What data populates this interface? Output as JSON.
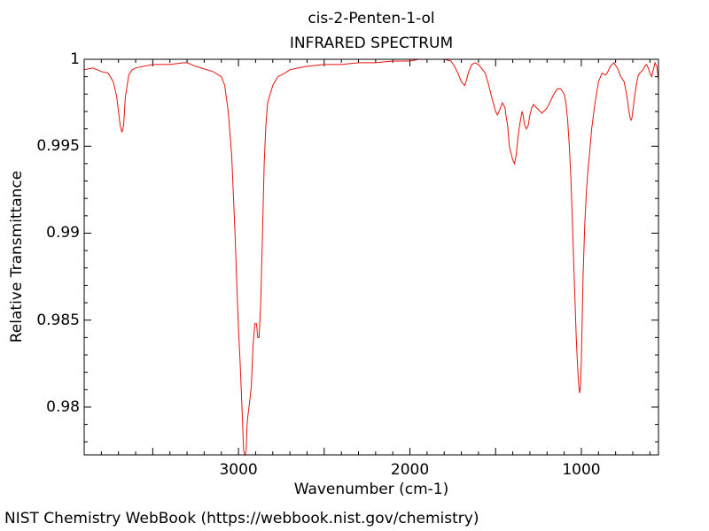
{
  "chart_data": {
    "type": "line",
    "title": "cis-2-Penten-1-ol",
    "subtitle": "INFRARED SPECTRUM",
    "xlabel": "Wavenumber (cm-1)",
    "ylabel": "Relative Transmittance",
    "xlim": [
      3900,
      550
    ],
    "ylim": [
      0.97725,
      1.0
    ],
    "x_ticks": [
      3000,
      2000,
      1000
    ],
    "x_tick_labels": [
      "3000",
      "2000",
      "1000"
    ],
    "y_ticks": [
      0.98,
      0.985,
      0.99,
      0.995,
      1.0
    ],
    "y_tick_labels": [
      "0.98",
      "0.985",
      "0.99",
      "0.995",
      "1"
    ],
    "grid": false,
    "line_color": "#e8120c",
    "series": [
      {
        "x": [
          3900,
          3850,
          3800,
          3760,
          3730,
          3710,
          3700,
          3690,
          3680,
          3670,
          3660,
          3640,
          3620,
          3600,
          3500,
          3400,
          3320,
          3300,
          3250,
          3150,
          3100,
          3080,
          3060,
          3040,
          3020,
          3010,
          3000,
          2990,
          2980,
          2970,
          2962,
          2955,
          2950,
          2945,
          2935,
          2925,
          2915,
          2905,
          2895,
          2888,
          2880,
          2870,
          2860,
          2850,
          2840,
          2830,
          2800,
          2770,
          2730,
          2700,
          2650,
          2600,
          2500,
          2400,
          2300,
          2200,
          2100,
          2000,
          1950,
          1900,
          1850,
          1800,
          1760,
          1740,
          1720,
          1700,
          1680,
          1670,
          1660,
          1640,
          1620,
          1600,
          1560,
          1540,
          1520,
          1500,
          1490,
          1480,
          1460,
          1445,
          1440,
          1430,
          1420,
          1400,
          1390,
          1380,
          1370,
          1360,
          1350,
          1345,
          1340,
          1330,
          1320,
          1310,
          1300,
          1290,
          1280,
          1260,
          1240,
          1230,
          1220,
          1200,
          1180,
          1160,
          1140,
          1120,
          1100,
          1090,
          1080,
          1070,
          1060,
          1050,
          1040,
          1035,
          1030,
          1025,
          1020,
          1015,
          1010,
          1005,
          1000,
          995,
          990,
          980,
          970,
          960,
          950,
          940,
          920,
          900,
          880,
          860,
          850,
          830,
          810,
          790,
          770,
          750,
          740,
          730,
          725,
          720,
          715,
          710,
          705,
          700,
          690,
          680,
          670,
          660,
          650,
          640,
          630,
          620,
          610,
          600,
          590,
          580,
          570,
          560,
          550
        ],
        "y": [
          0.9994,
          0.9995,
          0.9993,
          0.9992,
          0.9987,
          0.9978,
          0.997,
          0.9962,
          0.9958,
          0.9962,
          0.9978,
          0.9991,
          0.9994,
          0.9995,
          0.9997,
          0.9997,
          0.9998,
          0.9998,
          0.9996,
          0.9993,
          0.999,
          0.9985,
          0.997,
          0.9945,
          0.99,
          0.987,
          0.9845,
          0.9825,
          0.98,
          0.9775,
          0.97725,
          0.9775,
          0.979,
          0.9795,
          0.9803,
          0.9812,
          0.9835,
          0.9848,
          0.9848,
          0.984,
          0.984,
          0.986,
          0.99,
          0.994,
          0.9962,
          0.9975,
          0.9985,
          0.999,
          0.9992,
          0.9994,
          0.9995,
          0.9996,
          0.9997,
          0.9997,
          0.9998,
          0.9998,
          0.9999,
          0.9999,
          1.0,
          1.0,
          1.0,
          1.0,
          0.9999,
          0.9996,
          0.9992,
          0.9987,
          0.9985,
          0.9988,
          0.9992,
          0.9997,
          0.9998,
          0.9997,
          0.9992,
          0.9985,
          0.9977,
          0.997,
          0.9968,
          0.997,
          0.9975,
          0.9972,
          0.9968,
          0.9962,
          0.995,
          0.9942,
          0.994,
          0.9945,
          0.9955,
          0.9962,
          0.9968,
          0.997,
          0.9968,
          0.9962,
          0.996,
          0.9962,
          0.9968,
          0.9972,
          0.9974,
          0.9972,
          0.997,
          0.9969,
          0.997,
          0.9972,
          0.9976,
          0.998,
          0.9983,
          0.9983,
          0.998,
          0.9975,
          0.9965,
          0.995,
          0.993,
          0.99,
          0.987,
          0.9855,
          0.984,
          0.983,
          0.982,
          0.9812,
          0.9808,
          0.9812,
          0.9828,
          0.985,
          0.9875,
          0.9905,
          0.9925,
          0.9938,
          0.9948,
          0.996,
          0.9975,
          0.9987,
          0.9992,
          0.9991,
          0.9992,
          0.9996,
          0.9998,
          0.9995,
          0.999,
          0.9987,
          0.9982,
          0.9976,
          0.9972,
          0.9969,
          0.9966,
          0.9965,
          0.9966,
          0.997,
          0.9978,
          0.9985,
          0.999,
          0.9992,
          0.9993,
          0.9994,
          0.9996,
          0.9997,
          0.9995,
          0.9992,
          0.999,
          0.9994,
          0.9998,
          0.9996,
          0.9988
        ]
      }
    ]
  },
  "footer": {
    "credit": "NIST Chemistry WebBook (https://webbook.nist.gov/chemistry)"
  }
}
